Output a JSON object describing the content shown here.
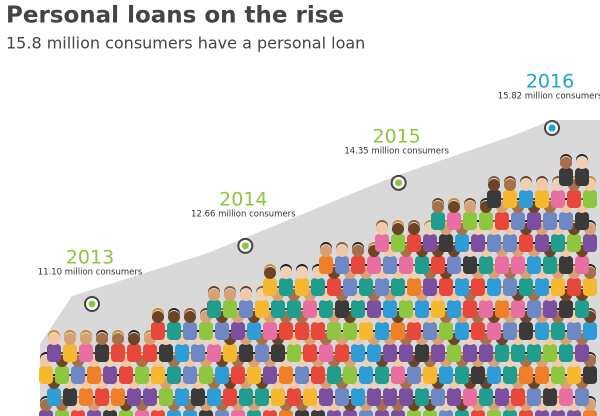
{
  "chart_data": {
    "type": "line",
    "title": "Personal loans on the rise",
    "subtitle": "15.8 million consumers have a personal loan",
    "categories": [
      "2013",
      "2014",
      "2015",
      "2016"
    ],
    "values": [
      11.1,
      12.66,
      14.35,
      15.82
    ],
    "value_labels": [
      "11.10 million consumers",
      "12.66 million consumers",
      "14.35 million consumers",
      "15.82 million consumers"
    ],
    "colors": [
      "#8dc63f",
      "#8dc63f",
      "#8dc63f",
      "#1aa3d4"
    ],
    "area_color": "#d9d9d9"
  }
}
